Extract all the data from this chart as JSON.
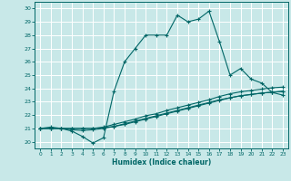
{
  "xlabel": "Humidex (Indice chaleur)",
  "ylabel": "",
  "bg_color": "#c8e8e8",
  "grid_color": "#ffffff",
  "line_color": "#006666",
  "xlim": [
    -0.5,
    23.5
  ],
  "ylim": [
    19.5,
    30.5
  ],
  "xticks": [
    0,
    1,
    2,
    3,
    4,
    5,
    6,
    7,
    8,
    9,
    10,
    11,
    12,
    13,
    14,
    15,
    16,
    17,
    18,
    19,
    20,
    21,
    22,
    23
  ],
  "yticks": [
    20,
    21,
    22,
    23,
    24,
    25,
    26,
    27,
    28,
    29,
    30
  ],
  "series": [
    [
      21.0,
      21.1,
      21.0,
      20.8,
      20.4,
      19.9,
      20.3,
      23.8,
      26.0,
      27.0,
      28.0,
      28.0,
      28.0,
      29.5,
      29.0,
      29.2,
      29.8,
      27.5,
      25.0,
      25.5,
      24.7,
      24.4,
      23.7,
      23.5
    ],
    [
      21.0,
      21.0,
      21.0,
      21.0,
      21.0,
      21.0,
      21.1,
      21.3,
      21.5,
      21.7,
      21.95,
      22.1,
      22.35,
      22.55,
      22.75,
      22.95,
      23.15,
      23.4,
      23.6,
      23.75,
      23.85,
      23.95,
      24.05,
      24.1
    ],
    [
      21.0,
      21.0,
      21.0,
      21.0,
      21.0,
      21.0,
      21.05,
      21.15,
      21.3,
      21.5,
      21.7,
      21.9,
      22.1,
      22.3,
      22.5,
      22.7,
      22.9,
      23.1,
      23.3,
      23.45,
      23.55,
      23.65,
      23.72,
      23.78
    ],
    [
      21.0,
      21.0,
      21.0,
      20.9,
      20.85,
      20.9,
      21.0,
      21.15,
      21.35,
      21.55,
      21.75,
      21.95,
      22.15,
      22.35,
      22.55,
      22.75,
      22.95,
      23.15,
      23.3,
      23.45,
      23.55,
      23.65,
      23.72,
      23.78
    ]
  ]
}
